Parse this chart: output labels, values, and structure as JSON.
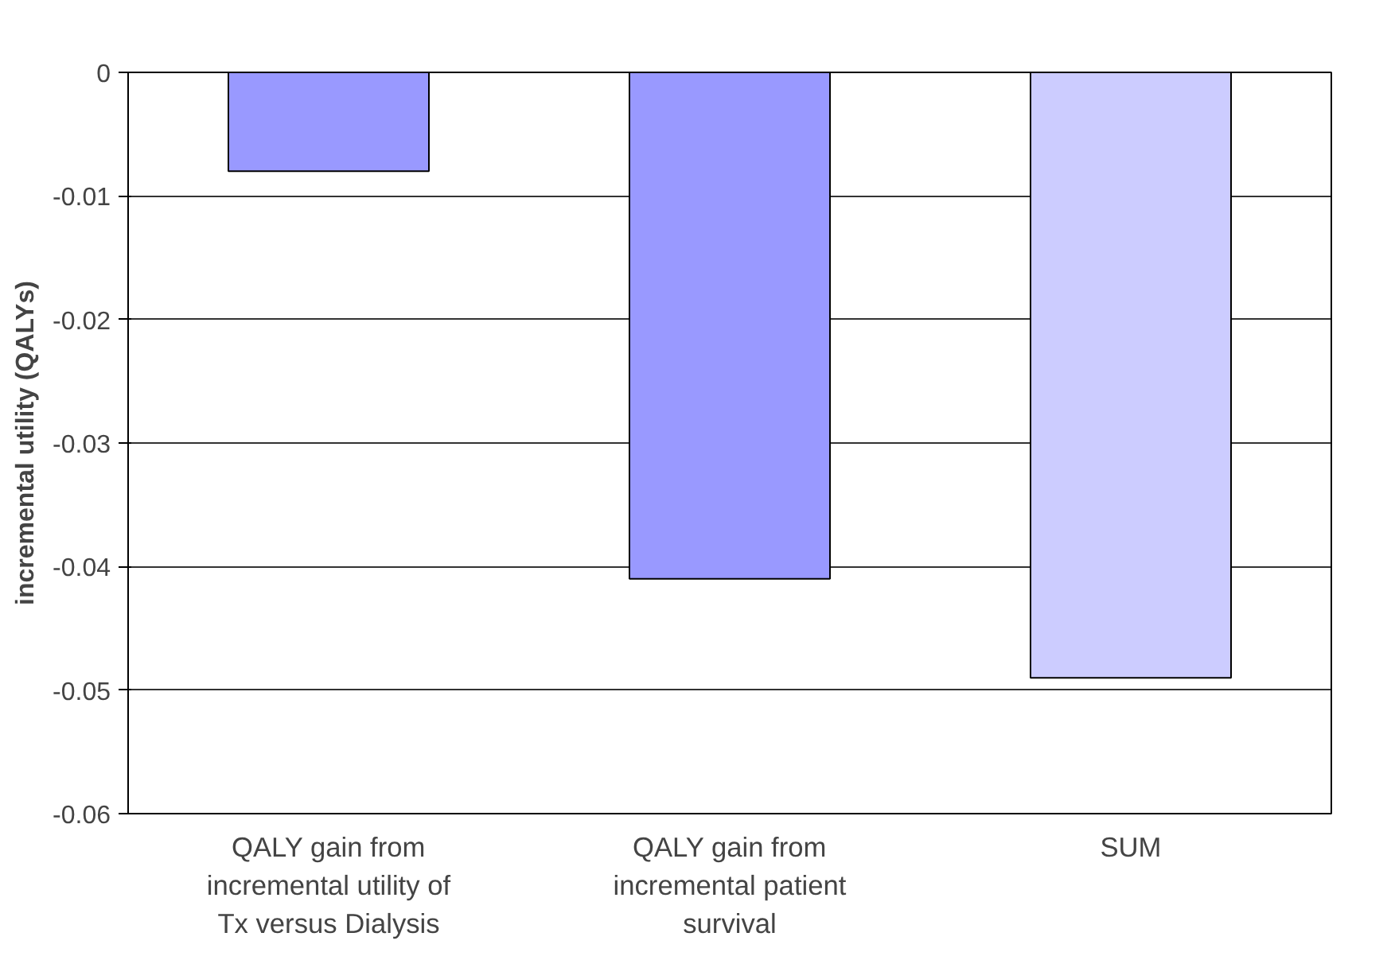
{
  "chart_data": {
    "type": "bar",
    "ylabel": "incremental utility (QALYs)",
    "categories": [
      "QALY gain from incremental utility of Tx versus Dialysis",
      "QALY gain from incremental patient survival",
      "SUM"
    ],
    "values": [
      -0.008,
      -0.041,
      -0.049
    ],
    "colors": [
      "#9999ff",
      "#9999ff",
      "#ccccff"
    ],
    "ylim": [
      -0.06,
      0
    ],
    "yticks": [
      -0.06,
      -0.05,
      -0.04,
      -0.03,
      -0.02,
      -0.01,
      0
    ],
    "grid": "y"
  }
}
